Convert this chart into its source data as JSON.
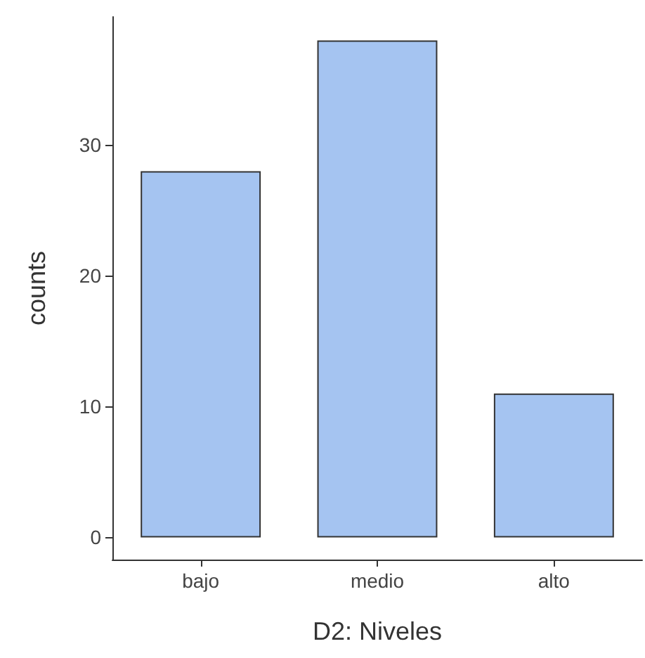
{
  "chart_data": {
    "type": "bar",
    "xlabel": "D2: Niveles",
    "ylabel": "counts",
    "categories": [
      "bajo",
      "medio",
      "alto"
    ],
    "values": [
      28,
      38,
      11
    ],
    "color": "#a5c4f1",
    "ylim": [
      -1.7,
      39.8
    ],
    "yticks": [
      0,
      10,
      20,
      30
    ],
    "grid": false
  }
}
